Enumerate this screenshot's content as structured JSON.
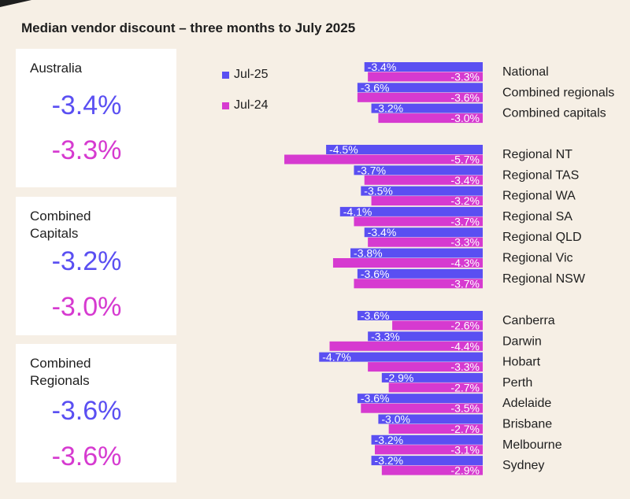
{
  "title": "Median vendor discount – three months to July 2025",
  "colors": {
    "jul25": "#5a4ff2",
    "jul24": "#d63ad0"
  },
  "cards": [
    {
      "name": "Australia",
      "jul25": "-3.4%",
      "jul24": "-3.3%"
    },
    {
      "name": "Combined\nCapitals",
      "jul25": "-3.2%",
      "jul24": "-3.0%"
    },
    {
      "name": "Combined\nRegionals",
      "jul25": "-3.6%",
      "jul24": "-3.6%"
    }
  ],
  "chart_data": {
    "type": "bar",
    "orientation": "horizontal",
    "legend": [
      "Jul-25",
      "Jul-24"
    ],
    "legend_placement": "top-left",
    "groups": [
      [
        "National",
        "Combined regionals",
        "Combined capitals"
      ],
      [
        "Regional NT",
        "Regional TAS",
        "Regional WA",
        "Regional SA",
        "Regional QLD",
        "Regional Vic",
        "Regional NSW"
      ],
      [
        "Canberra",
        "Darwin",
        "Hobart",
        "Perth",
        "Adelaide",
        "Brisbane",
        "Melbourne",
        "Sydney"
      ]
    ],
    "series": [
      {
        "name": "Jul-25",
        "values": [
          [
            -3.4,
            -3.6,
            -3.2
          ],
          [
            -4.5,
            -3.7,
            -3.5,
            -4.1,
            -3.4,
            -3.8,
            -3.6
          ],
          [
            -3.6,
            -3.3,
            -4.7,
            -2.9,
            -3.6,
            -3.0,
            -3.2,
            -3.2
          ]
        ]
      },
      {
        "name": "Jul-24",
        "values": [
          [
            -3.3,
            -3.6,
            -3.0
          ],
          [
            -5.7,
            -3.4,
            -3.2,
            -3.7,
            -3.3,
            -4.3,
            -3.7
          ],
          [
            -2.6,
            -4.4,
            -3.3,
            -2.7,
            -3.5,
            -2.7,
            -3.1,
            -2.9
          ]
        ]
      }
    ],
    "grid": false
  }
}
